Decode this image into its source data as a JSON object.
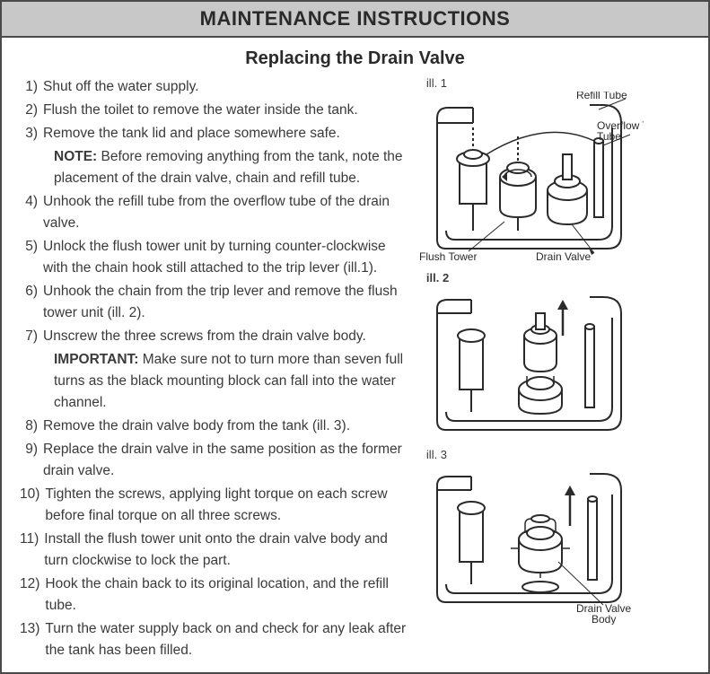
{
  "header": "MAINTENANCE INSTRUCTIONS",
  "subtitle": "Replacing the Drain Valve",
  "steps": [
    {
      "n": "1)",
      "t": "Shut off the water supply."
    },
    {
      "n": "2)",
      "t": "Flush the toilet to remove the water inside the tank."
    },
    {
      "n": "3)",
      "t": "Remove the tank lid and place somewhere safe."
    },
    {
      "n": "",
      "t": "<b>NOTE:</b> Before removing anything from the tank, note the placement of the drain valve, chain and refill tube.",
      "sub": true
    },
    {
      "n": "4)",
      "t": "Unhook the refill tube from the overflow tube of the drain valve.",
      "sub2": true
    },
    {
      "n": "5)",
      "t": "Unlock the flush tower unit by turning counter-clockwise with the chain hook still attached to the trip lever (ill.1)."
    },
    {
      "n": "6)",
      "t": "Unhook the chain from the trip lever and remove the flush tower unit (ill. 2)."
    },
    {
      "n": "7)",
      "t": "Unscrew the three screws from the drain valve body."
    },
    {
      "n": "",
      "t": "<b>IMPORTANT:</b> Make sure not to turn more than seven full turns as the black mounting block can fall into the water channel.",
      "sub": true
    },
    {
      "n": "8)",
      "t": "Remove the drain valve body from the tank (ill. 3)."
    },
    {
      "n": "9)",
      "t": "Replace the drain valve in the same position as the former drain valve."
    },
    {
      "n": "10)",
      "t": "Tighten the screws, applying light torque on each screw before final torque on all three screws."
    },
    {
      "n": "11)",
      "t": "Install the flush tower unit onto the drain valve body and turn clockwise to lock the part."
    },
    {
      "n": "12)",
      "t": "Hook the chain back to its original location, and the refill tube."
    },
    {
      "n": "13)",
      "t": "Turn the water supply back on and check for any leak after the tank has been filled."
    }
  ],
  "ill1": {
    "label": "ill. 1",
    "refill": "Refill Tube",
    "overflow": "Overflow Tube",
    "flush": "Flush Tower",
    "drain": "Drain Valve"
  },
  "ill2": {
    "label": "ill. 2"
  },
  "ill3": {
    "label": "ill. 3",
    "body": "Drain Valve Body"
  },
  "colors": {
    "stroke": "#2a2a2a",
    "fill_light": "#ffffff",
    "fill_gray": "#e0e0e0"
  }
}
